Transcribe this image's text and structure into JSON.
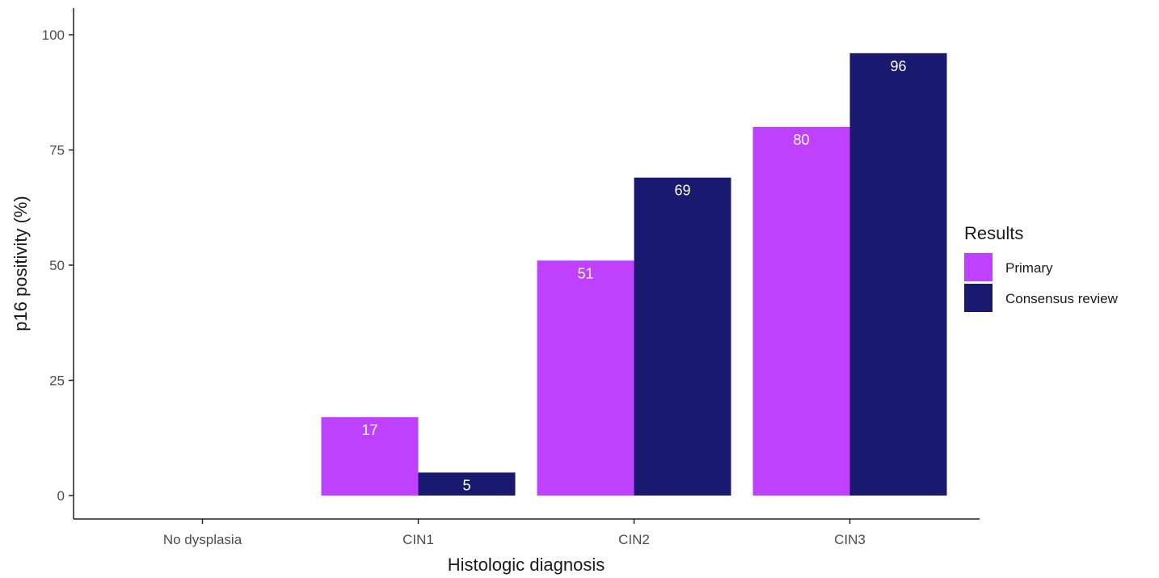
{
  "chart_data": {
    "type": "bar",
    "categories": [
      "No dysplasia",
      "CIN1",
      "CIN2",
      "CIN3"
    ],
    "series": [
      {
        "name": "Primary",
        "color": "#bf40ff",
        "values": [
          null,
          17,
          51,
          80
        ]
      },
      {
        "name": "Consensus review",
        "color": "#191970",
        "values": [
          null,
          5,
          69,
          96
        ]
      }
    ],
    "xlabel": "Histologic diagnosis",
    "ylabel": "p16 positivity (%)",
    "ylim": [
      0,
      100
    ],
    "yticks": [
      0,
      25,
      50,
      75,
      100
    ],
    "grid": false,
    "legend": {
      "title": "Results",
      "position": "right"
    }
  }
}
